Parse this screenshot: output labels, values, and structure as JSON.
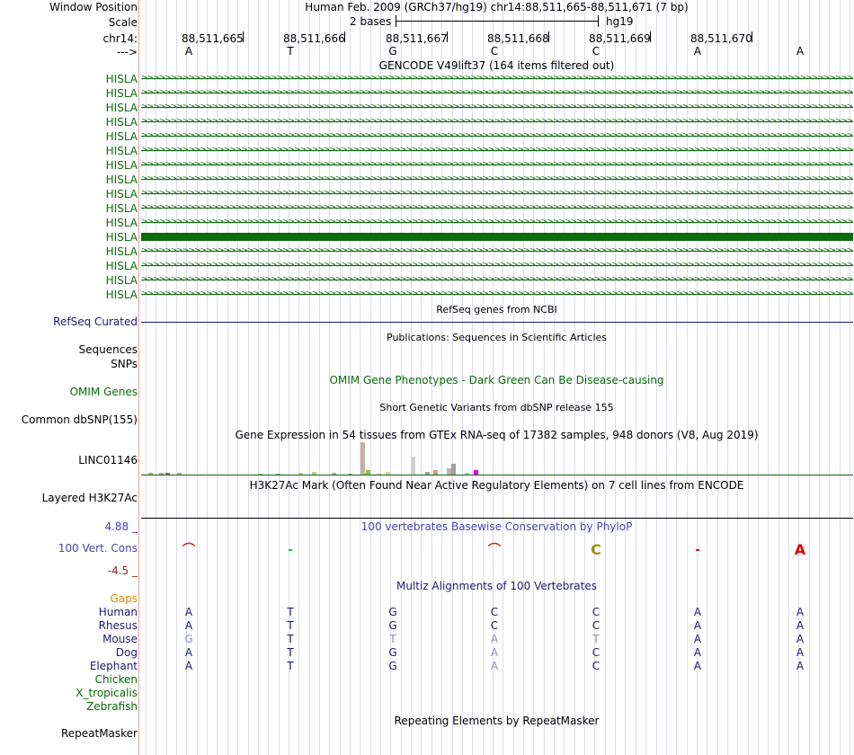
{
  "header": {
    "window_position_label": "Window Position",
    "scale_label": "Scale",
    "chrom_label": "chr14:",
    "strand_label": "--->",
    "assembly_text": "Human Feb. 2009 (GRCh37/hg19)   chr14:88,511,665-88,511,671 (7 bp)",
    "scale_text": "2 bases",
    "scale_db": "hg19",
    "positions": [
      "88,511,665",
      "88,511,666",
      "88,511,667",
      "88,511,668",
      "88,511,669",
      "88,511,670"
    ],
    "bases": [
      "A",
      "T",
      "G",
      "C",
      "C",
      "A",
      "A"
    ]
  },
  "gencode": {
    "title": "GENCODE V49lift37 (164 items filtered out)",
    "items": [
      "HISLA",
      "HISLA",
      "HISLA",
      "HISLA",
      "HISLA",
      "HISLA",
      "HISLA",
      "HISLA",
      "HISLA",
      "HISLA",
      "HISLA",
      "HISLA",
      "HISLA",
      "HISLA",
      "HISLA",
      "HISLA"
    ],
    "color": "#0a6b0a"
  },
  "refseq": {
    "label": "RefSeq Curated",
    "title": "RefSeq genes from NCBI",
    "color": "#1a1a70"
  },
  "publications": {
    "label": "Sequences",
    "title": "Publications: Sequences in Scientific Articles"
  },
  "snps": {
    "label": "SNPs"
  },
  "omim": {
    "label": "OMIM Genes",
    "title": "OMIM Gene Phenotypes - Dark Green Can Be Disease-causing",
    "color": "#0a6b0a"
  },
  "dbsnp": {
    "label": "Common dbSNP(155)",
    "title": "Short Genetic Variants from dbSNP release 155"
  },
  "gtex": {
    "label": "LINC01146",
    "title": "Gene Expression in 54 tissues from GTEx RNA-seq of 17382 samples, 948 donors (V8, Aug 2019)",
    "bars": [
      {
        "h": 2,
        "c": "#c8a060"
      },
      {
        "h": 2,
        "c": "#d090a0"
      },
      {
        "h": 2,
        "c": "#a06080"
      },
      {
        "h": 2,
        "c": "#c0a060"
      },
      {
        "h": 1,
        "c": "#90c060"
      },
      {
        "h": 1,
        "c": "#a0a0a0"
      },
      {
        "h": 2,
        "c": "#d0c080"
      },
      {
        "h": 3,
        "c": "#b0d090"
      },
      {
        "h": 2,
        "c": "#c0a0c0"
      },
      {
        "h": 1,
        "c": "#a0a0a0"
      },
      {
        "h": 2,
        "c": "#d0b0a0"
      },
      {
        "h": 36,
        "c": "#c8b0a0"
      },
      {
        "h": 5,
        "c": "#90c040"
      },
      {
        "h": 1,
        "c": "#c0c0a0"
      },
      {
        "h": 3,
        "c": "#d0d0a0"
      },
      {
        "h": 20,
        "c": "#d0d0d0"
      },
      {
        "h": 3,
        "c": "#a0a0a0"
      },
      {
        "h": 5,
        "c": "#c0a080"
      },
      {
        "h": 7,
        "c": "#c0b0b0"
      },
      {
        "h": 12,
        "c": "#a0a0a0"
      },
      {
        "h": 2,
        "c": "#b0c0e0"
      },
      {
        "h": 5,
        "c": "#e000e0"
      }
    ]
  },
  "h3k27ac": {
    "label": "Layered H3K27Ac",
    "title": "H3K27Ac Mark (Often Found Near Active Regulatory Elements) on 7 cell lines from ENCODE"
  },
  "phylop": {
    "label": "100 Vert. Cons",
    "title": "100 vertebrates Basewise Conservation by PhyloP",
    "max": "4.88 _",
    "min": "-4.5 _",
    "color": "#4646b4",
    "max_color": "#4646b4",
    "min_color": "#8b2a1a"
  },
  "multiz": {
    "title": "Multiz Alignments of 100 Vertebrates",
    "gaps_label": "Gaps",
    "species": [
      {
        "name": "Human",
        "bases": [
          "A",
          "T",
          "G",
          "C",
          "C",
          "A",
          "A"
        ]
      },
      {
        "name": "Rhesus",
        "bases": [
          "A",
          "T",
          "G",
          "C",
          "C",
          "A",
          "A"
        ]
      },
      {
        "name": "Mouse",
        "bases": [
          "G",
          "T",
          "T",
          "A",
          "T",
          "A",
          "A"
        ]
      },
      {
        "name": "Dog",
        "bases": [
          "A",
          "T",
          "G",
          "A",
          "C",
          "A",
          "A"
        ]
      },
      {
        "name": "Elephant",
        "bases": [
          "A",
          "T",
          "G",
          "A",
          "C",
          "A",
          "A"
        ]
      },
      {
        "name": "Chicken",
        "bases": []
      },
      {
        "name": "X_tropicalis",
        "bases": []
      },
      {
        "name": "Zebrafish",
        "bases": []
      }
    ]
  },
  "repeatmasker": {
    "label": "RepeatMasker",
    "title": "Repeating Elements by RepeatMasker"
  }
}
